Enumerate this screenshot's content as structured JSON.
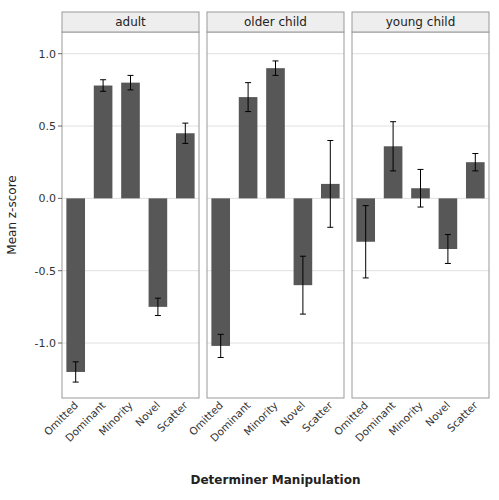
{
  "chart_data": {
    "type": "bar",
    "categories": [
      "Omitted",
      "Dominant",
      "Minority",
      "Novel",
      "Scatter"
    ],
    "series": [
      {
        "name": "adult",
        "values": [
          -1.2,
          0.78,
          0.8,
          -0.75,
          0.45
        ],
        "errors": [
          0.07,
          0.04,
          0.05,
          0.06,
          0.07
        ]
      },
      {
        "name": "older child",
        "values": [
          -1.02,
          0.7,
          0.9,
          -0.6,
          0.1
        ],
        "errors": [
          0.08,
          0.1,
          0.05,
          0.2,
          0.3
        ]
      },
      {
        "name": "young child",
        "values": [
          -0.3,
          0.36,
          0.07,
          -0.35,
          0.25
        ],
        "errors": [
          0.25,
          0.17,
          0.13,
          0.1,
          0.06
        ]
      }
    ],
    "color": "#575757",
    "xlabel": "Determiner Manipulation",
    "ylabel": "Mean z-score",
    "ylim": [
      -1.38,
      1.15
    ],
    "yticks": [
      {
        "value": -1.0,
        "label": "-1.0"
      },
      -0.5,
      {
        "value": 0.0,
        "label": "0.0"
      },
      0.5,
      {
        "value": 1.0,
        "label": "1.0"
      }
    ],
    "grid": true
  }
}
